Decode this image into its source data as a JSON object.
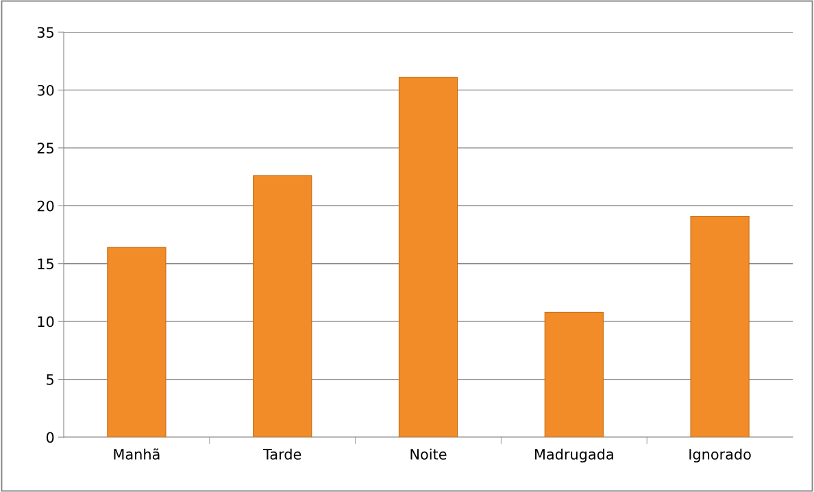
{
  "chart_data": {
    "type": "bar",
    "categories": [
      "Manhã",
      "Tarde",
      "Noite",
      "Madrugada",
      "Ignorado"
    ],
    "values": [
      16.4,
      22.6,
      31.1,
      10.8,
      19.1
    ],
    "color": "#f28c28",
    "ylim": [
      0,
      35
    ],
    "yticks": [
      0,
      5,
      10,
      15,
      20,
      25,
      30,
      35
    ],
    "grid": "y",
    "legend": false
  }
}
